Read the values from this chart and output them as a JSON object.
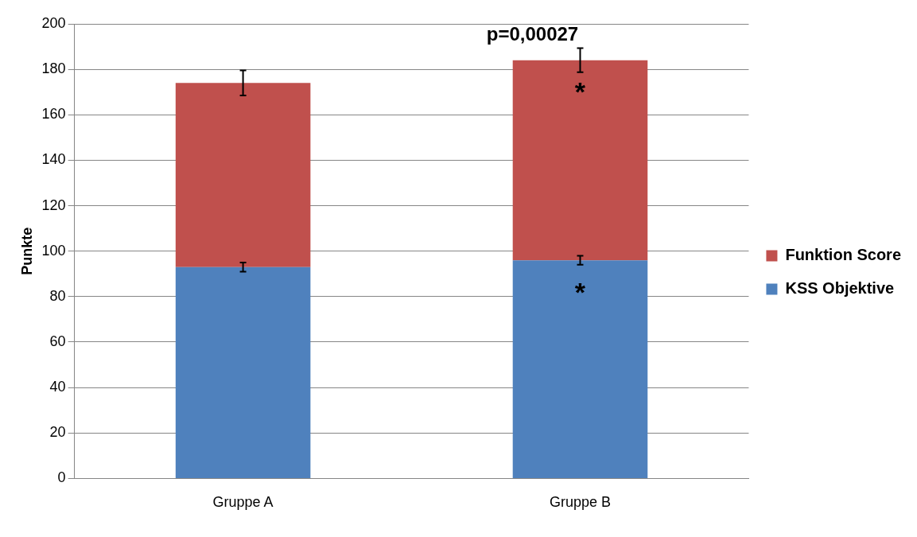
{
  "chart_data": {
    "type": "bar",
    "stacked": true,
    "ylabel": "Punkte",
    "categories": [
      "Gruppe A",
      "Gruppe B"
    ],
    "series": [
      {
        "name": "KSS Objektive",
        "color": "#4f81bd",
        "values": [
          93,
          96
        ],
        "errors": [
          2,
          2
        ]
      },
      {
        "name": "Funktion Score",
        "color": "#c0504d",
        "values": [
          81,
          88
        ],
        "errors": [
          5.5,
          5.3
        ]
      }
    ],
    "ylim": [
      0,
      200
    ],
    "yticks": [
      0,
      20,
      40,
      60,
      80,
      100,
      120,
      140,
      160,
      180,
      200
    ],
    "grid": "y",
    "legend": "right",
    "annotations": [
      "p=0,00027",
      "*",
      "*"
    ]
  }
}
